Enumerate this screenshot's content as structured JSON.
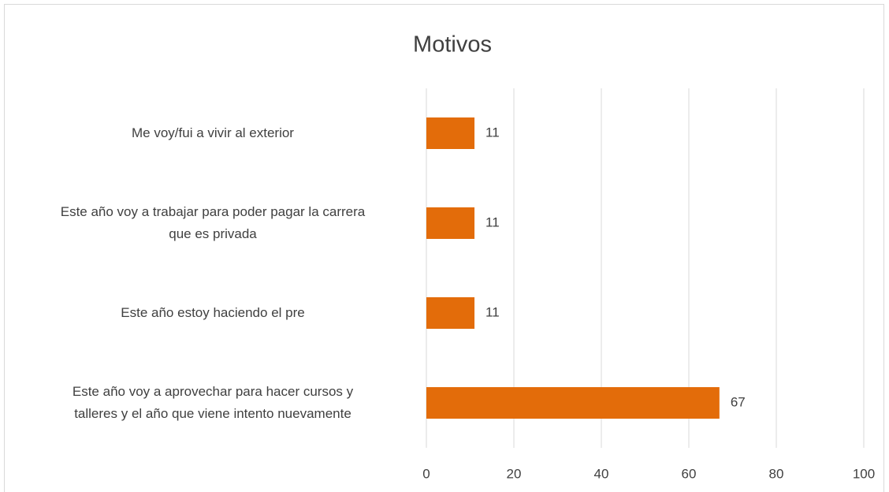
{
  "chart_data": {
    "type": "bar",
    "orientation": "horizontal",
    "title": "Motivos",
    "categories": [
      "Me voy/fui a vivir al exterior",
      "Este año voy a trabajar para poder pagar la carrera\nque es privada",
      "Este año estoy haciendo el pre",
      "Este año voy a aprovechar para hacer cursos y\ntalleres y el año que viene intento nuevamente"
    ],
    "values": [
      11,
      11,
      11,
      67
    ],
    "color": "#e36c0a",
    "xlim": [
      0,
      100
    ],
    "xticks": [
      0,
      20,
      40,
      60,
      80,
      100
    ],
    "grid": true
  }
}
